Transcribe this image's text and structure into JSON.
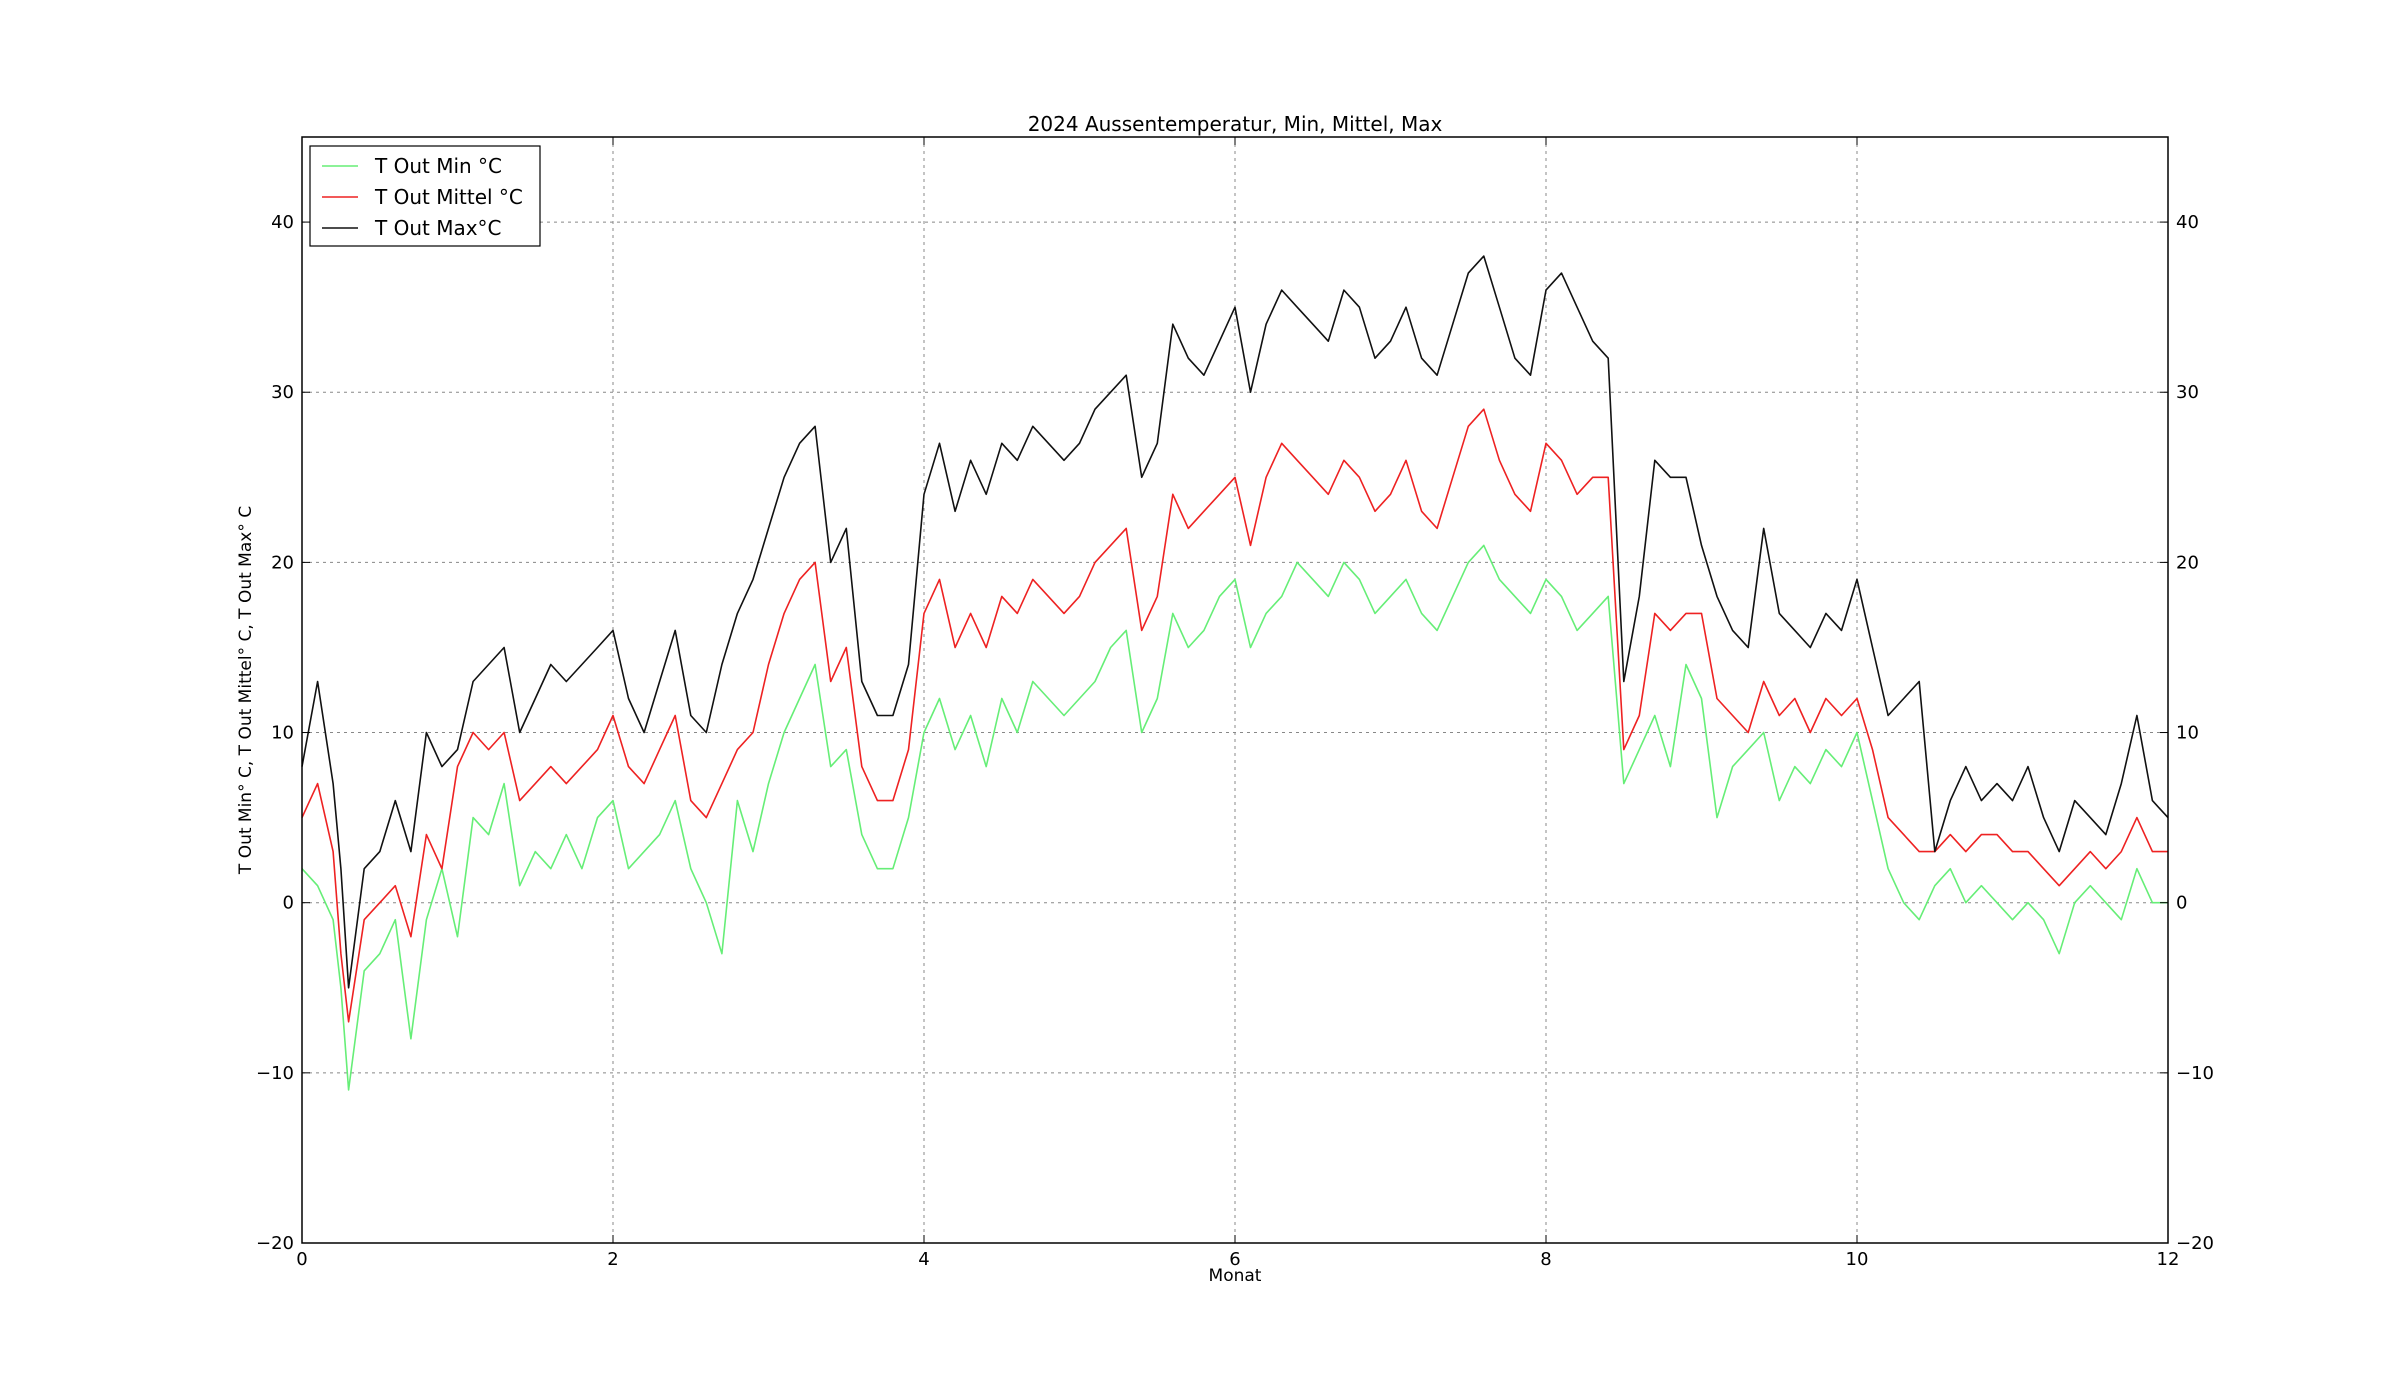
{
  "chart_data": {
    "type": "line",
    "title": "2024 Aussentemperatur, Min, Mittel, Max",
    "xlabel": "Monat",
    "ylabel": "T Out Min° C, T Out Mittel° C, T Out Max° C",
    "xlim": [
      0,
      12
    ],
    "ylim": [
      -20,
      45
    ],
    "xticks": [
      0,
      2,
      4,
      6,
      8,
      10,
      12
    ],
    "yticks": [
      -20,
      -10,
      0,
      10,
      20,
      30,
      40
    ],
    "grid": true,
    "legend_position": "top-left",
    "x": [
      0.0,
      0.1,
      0.2,
      0.25,
      0.3,
      0.4,
      0.5,
      0.6,
      0.7,
      0.8,
      0.9,
      1.0,
      1.1,
      1.2,
      1.3,
      1.4,
      1.5,
      1.6,
      1.7,
      1.8,
      1.9,
      2.0,
      2.1,
      2.2,
      2.3,
      2.4,
      2.5,
      2.6,
      2.7,
      2.8,
      2.9,
      3.0,
      3.1,
      3.2,
      3.3,
      3.4,
      3.5,
      3.6,
      3.7,
      3.8,
      3.9,
      4.0,
      4.1,
      4.2,
      4.3,
      4.4,
      4.5,
      4.6,
      4.7,
      4.8,
      4.9,
      5.0,
      5.1,
      5.2,
      5.3,
      5.4,
      5.5,
      5.6,
      5.7,
      5.8,
      5.9,
      6.0,
      6.1,
      6.2,
      6.3,
      6.4,
      6.5,
      6.6,
      6.7,
      6.8,
      6.9,
      7.0,
      7.1,
      7.2,
      7.3,
      7.4,
      7.5,
      7.6,
      7.7,
      7.8,
      7.9,
      8.0,
      8.1,
      8.2,
      8.3,
      8.4,
      8.5,
      8.6,
      8.7,
      8.8,
      8.9,
      9.0,
      9.1,
      9.2,
      9.3,
      9.4,
      9.5,
      9.6,
      9.7,
      9.8,
      9.9,
      10.0,
      10.1,
      10.2,
      10.3,
      10.4,
      10.5,
      10.6,
      10.7,
      10.8,
      10.9,
      11.0,
      11.1,
      11.2,
      11.3,
      11.4,
      11.5,
      11.6,
      11.7,
      11.8,
      11.9,
      12.0
    ],
    "series": [
      {
        "name": "T Out Min °C",
        "color": "#66ee77",
        "values": [
          2,
          1,
          -1,
          -5,
          -11,
          -4,
          -3,
          -1,
          -8,
          -1,
          2,
          -2,
          5,
          4,
          7,
          1,
          3,
          2,
          4,
          2,
          5,
          6,
          2,
          3,
          4,
          6,
          2,
          0,
          -3,
          6,
          3,
          7,
          10,
          12,
          14,
          8,
          9,
          4,
          2,
          2,
          5,
          10,
          12,
          9,
          11,
          8,
          12,
          10,
          13,
          12,
          11,
          12,
          13,
          15,
          16,
          10,
          12,
          17,
          15,
          16,
          18,
          19,
          15,
          17,
          18,
          20,
          19,
          18,
          20,
          19,
          17,
          18,
          19,
          17,
          16,
          18,
          20,
          21,
          19,
          18,
          17,
          19,
          18,
          16,
          17,
          18,
          7,
          9,
          11,
          8,
          14,
          12,
          5,
          8,
          9,
          10,
          6,
          8,
          7,
          9,
          8,
          10,
          6,
          2,
          0,
          -1,
          1,
          2,
          0,
          1,
          0,
          -1,
          0,
          -1,
          -3,
          0,
          1,
          0,
          -1,
          2,
          0,
          0
        ]
      },
      {
        "name": "T Out Mittel °C",
        "color": "#ee2222",
        "values": [
          5,
          7,
          3,
          -3,
          -7,
          -1,
          0,
          1,
          -2,
          4,
          2,
          8,
          10,
          9,
          10,
          6,
          7,
          8,
          7,
          8,
          9,
          11,
          8,
          7,
          9,
          11,
          6,
          5,
          7,
          9,
          10,
          14,
          17,
          19,
          20,
          13,
          15,
          8,
          6,
          6,
          9,
          17,
          19,
          15,
          17,
          15,
          18,
          17,
          19,
          18,
          17,
          18,
          20,
          21,
          22,
          16,
          18,
          24,
          22,
          23,
          24,
          25,
          21,
          25,
          27,
          26,
          25,
          24,
          26,
          25,
          23,
          24,
          26,
          23,
          22,
          25,
          28,
          29,
          26,
          24,
          23,
          27,
          26,
          24,
          25,
          25,
          9,
          11,
          17,
          16,
          17,
          17,
          12,
          11,
          10,
          13,
          11,
          12,
          10,
          12,
          11,
          12,
          9,
          5,
          4,
          3,
          3,
          4,
          3,
          4,
          4,
          3,
          3,
          2,
          1,
          2,
          3,
          2,
          3,
          5,
          3,
          3
        ]
      },
      {
        "name": "T Out Max°C",
        "color": "#111111",
        "values": [
          8,
          13,
          7,
          2,
          -5,
          2,
          3,
          6,
          3,
          10,
          8,
          9,
          13,
          14,
          15,
          10,
          12,
          14,
          13,
          14,
          15,
          16,
          12,
          10,
          13,
          16,
          11,
          10,
          14,
          17,
          19,
          22,
          25,
          27,
          28,
          20,
          22,
          13,
          11,
          11,
          14,
          24,
          27,
          23,
          26,
          24,
          27,
          26,
          28,
          27,
          26,
          27,
          29,
          30,
          31,
          25,
          27,
          34,
          32,
          31,
          33,
          35,
          30,
          34,
          36,
          35,
          34,
          33,
          36,
          35,
          32,
          33,
          35,
          32,
          31,
          34,
          37,
          38,
          35,
          32,
          31,
          36,
          37,
          35,
          33,
          32,
          13,
          18,
          26,
          25,
          25,
          21,
          18,
          16,
          15,
          22,
          17,
          16,
          15,
          17,
          16,
          19,
          15,
          11,
          12,
          13,
          3,
          6,
          8,
          6,
          7,
          6,
          8,
          5,
          3,
          6,
          5,
          4,
          7,
          11,
          6,
          5
        ]
      }
    ]
  }
}
